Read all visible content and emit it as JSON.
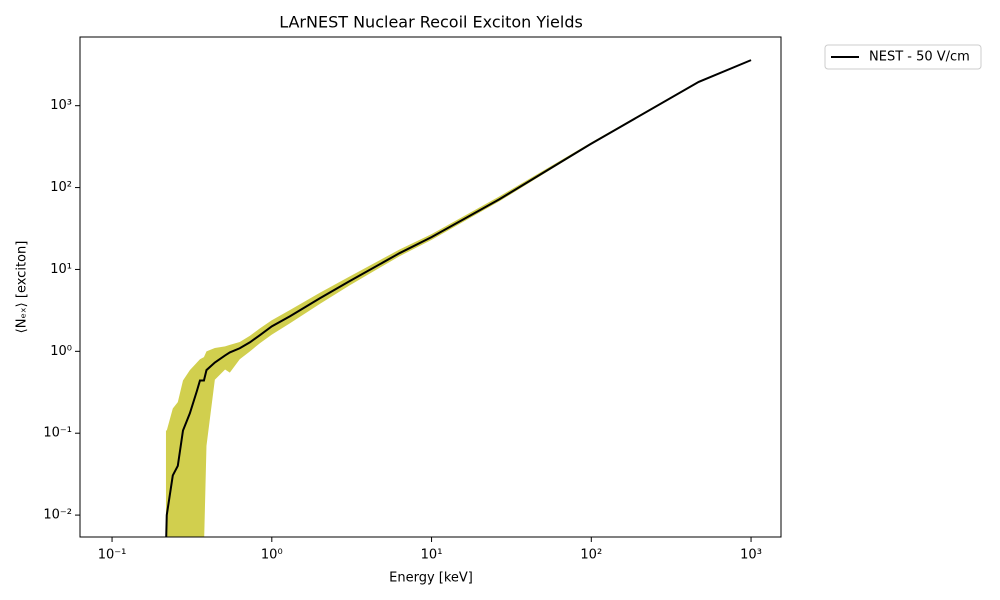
{
  "chart_data": {
    "type": "line",
    "title": "LArNEST Nuclear Recoil Exciton Yields",
    "xlabel": "Energy [keV]",
    "ylabel": "⟨Nₑₓ⟩ [exciton]",
    "xscale": "log",
    "yscale": "log",
    "xlim": [
      0.063,
      1540
    ],
    "ylim": [
      0.0054,
      6900
    ],
    "xticks": [
      {
        "value": 0.1,
        "label": "10⁻¹"
      },
      {
        "value": 1,
        "label": "10⁰"
      },
      {
        "value": 10,
        "label": "10¹"
      },
      {
        "value": 100,
        "label": "10²"
      },
      {
        "value": 1000,
        "label": "10³"
      }
    ],
    "yticks": [
      {
        "value": 0.01,
        "label": "10⁻²"
      },
      {
        "value": 0.1,
        "label": "10⁻¹"
      },
      {
        "value": 1,
        "label": "10⁰"
      },
      {
        "value": 10,
        "label": "10¹"
      },
      {
        "value": 100,
        "label": "10²"
      },
      {
        "value": 1000,
        "label": "10³"
      }
    ],
    "legend": "outside-upper-right",
    "x": [
      0.2175,
      0.22,
      0.24,
      0.258,
      0.278,
      0.307,
      0.34,
      0.355,
      0.376,
      0.39,
      0.44,
      0.51,
      0.546,
      0.63,
      0.73,
      0.84,
      1.0,
      1.3,
      2.0,
      3.07,
      6.3,
      10,
      26.6,
      98.5,
      470,
      1000
    ],
    "series": [
      {
        "name": "NEST - 50 V/cm",
        "color": "#000000",
        "values": [
          0.004,
          0.01,
          0.0305,
          0.04,
          0.108,
          0.175,
          0.33,
          0.44,
          0.44,
          0.59,
          0.73,
          0.89,
          0.97,
          1.09,
          1.29,
          1.57,
          2.02,
          2.68,
          4.45,
          7.2,
          15.8,
          24.8,
          72,
          338,
          1950,
          3600
        ]
      }
    ],
    "band": {
      "color": "#d1cf4e",
      "lower": [
        0.004,
        0.004,
        0.004,
        0.004,
        0.004,
        0.004,
        0.004,
        0.004,
        0.004,
        0.07,
        0.45,
        0.6,
        0.55,
        0.8,
        1.0,
        1.25,
        1.6,
        2.2,
        3.8,
        6.4,
        14.5,
        23,
        68,
        330,
        1900,
        3550
      ],
      "upper": [
        0.108,
        0.108,
        0.2,
        0.24,
        0.44,
        0.59,
        0.73,
        0.8,
        0.85,
        1.0,
        1.1,
        1.15,
        1.2,
        1.3,
        1.55,
        1.9,
        2.4,
        3.2,
        5.2,
        8.2,
        17.5,
        27,
        78,
        350,
        2000,
        3650
      ]
    }
  }
}
